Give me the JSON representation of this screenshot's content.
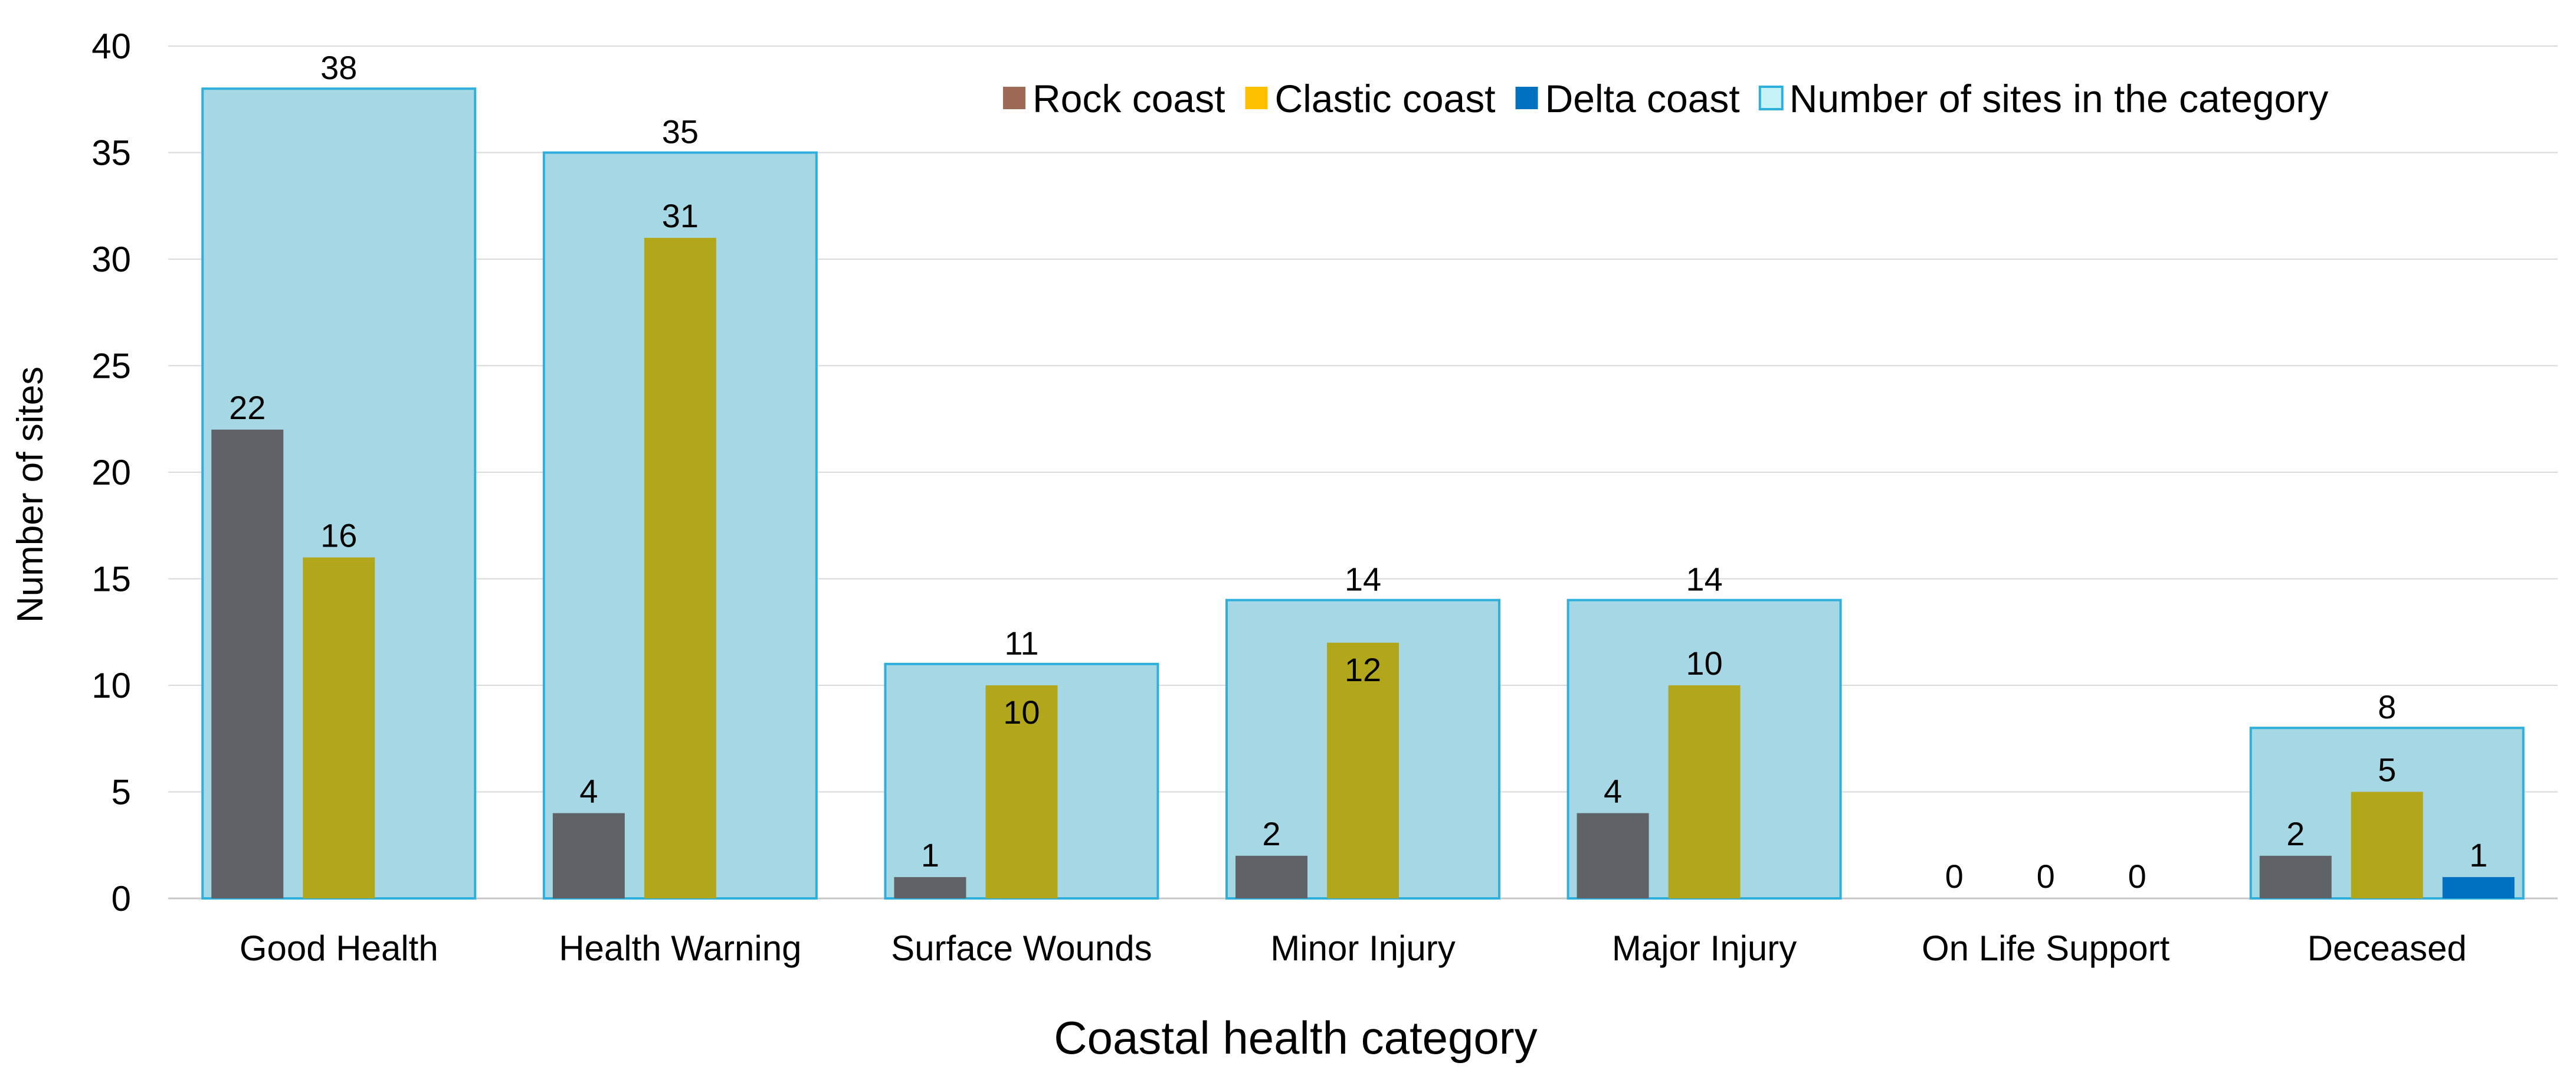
{
  "chart_data": {
    "type": "bar",
    "xlabel": "Coastal health category",
    "ylabel": "Number of sites",
    "ylim": [
      0,
      40
    ],
    "yticks": [
      0,
      5,
      10,
      15,
      20,
      25,
      30,
      35,
      40
    ],
    "grid": true,
    "legend_position": "top-right",
    "categories": [
      "Good Health",
      "Health Warning",
      "Surface Wounds",
      "Minor Injury",
      "Major Injury",
      "On Life Support",
      "Deceased"
    ],
    "total": {
      "name": "Number of sites in the category",
      "values": [
        38,
        35,
        11,
        14,
        14,
        0,
        8
      ],
      "fill": "#a5d8e4",
      "stroke": "#2fb0dc"
    },
    "series": [
      {
        "name": "Rock coast",
        "values": [
          22,
          4,
          1,
          2,
          4,
          0,
          2
        ],
        "color": "#5f6266",
        "legend_color": "#9e6a55"
      },
      {
        "name": "Clastic coast",
        "values": [
          16,
          31,
          10,
          12,
          10,
          0,
          5
        ],
        "color": "#b2a71b",
        "legend_color": "#ffc000"
      },
      {
        "name": "Delta coast",
        "values": [
          null,
          null,
          null,
          null,
          null,
          0,
          1
        ],
        "color": "#0070c0",
        "legend_color": "#0070c0"
      }
    ]
  }
}
